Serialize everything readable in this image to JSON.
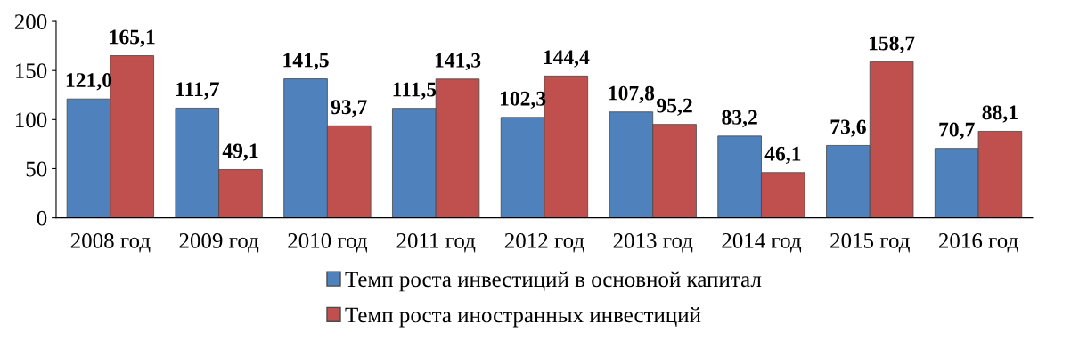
{
  "chart_data": {
    "type": "bar",
    "categories": [
      "2008 год",
      "2009 год",
      "2010 год",
      "2011 год",
      "2012 год",
      "2013 год",
      "2014 год",
      "2015 год",
      "2016 год"
    ],
    "series": [
      {
        "name": "Темп роста инвестиций в основной капитал",
        "color": "#4f81bd",
        "values": [
          121.0,
          111.7,
          141.5,
          111.5,
          102.3,
          107.8,
          83.2,
          73.6,
          70.7
        ],
        "value_labels": [
          "121,0",
          "111,7",
          "141,5",
          "111,5",
          "102,3",
          "107,8",
          "83,2",
          "73,6",
          "70,7"
        ]
      },
      {
        "name": "Темп роста иностранных инвестиций",
        "color": "#c0504d",
        "values": [
          165.1,
          49.1,
          93.7,
          141.3,
          144.4,
          95.2,
          46.1,
          158.7,
          88.1
        ],
        "value_labels": [
          "165,1",
          "49,1",
          "93,7",
          "141,3",
          "144,4",
          "95,2",
          "46,1",
          "158,7",
          "88,1"
        ]
      }
    ],
    "ylim": [
      0,
      200
    ],
    "yticks": [
      0,
      50,
      100,
      150,
      200
    ],
    "grid": false,
    "legend": "bottom"
  }
}
